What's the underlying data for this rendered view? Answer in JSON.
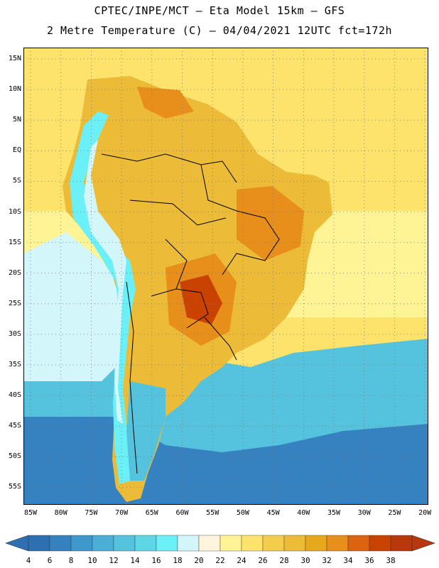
{
  "title_line1": "CPTEC/INPE/MCT –  Eta Model 15km – GFS",
  "title_line2": "2 Metre Temperature (C) – 04/04/2021 12UTC fct=172h",
  "lat_labels": [
    "15N",
    "10N",
    "5N",
    "EQ",
    "5S",
    "10S",
    "15S",
    "20S",
    "25S",
    "30S",
    "35S",
    "40S",
    "45S",
    "50S",
    "55S"
  ],
  "lon_labels": [
    "85W",
    "80W",
    "75W",
    "70W",
    "65W",
    "60W",
    "55W",
    "50W",
    "45W",
    "40W",
    "35W",
    "30W",
    "25W",
    "20W"
  ],
  "colorbar": {
    "labels": [
      "4",
      "6",
      "8",
      "10",
      "12",
      "14",
      "16",
      "18",
      "20",
      "22",
      "24",
      "26",
      "28",
      "30",
      "32",
      "34",
      "36",
      "38"
    ],
    "colors": [
      "#2d6fb0",
      "#3682c0",
      "#3f98cc",
      "#4aaed6",
      "#55c3dd",
      "#5fd6e6",
      "#6cf0f7",
      "#d3f6fb",
      "#fff5dc",
      "#fff495",
      "#fde36c",
      "#f5cd4d",
      "#ecbb38",
      "#e6a81c",
      "#e88f1b",
      "#dc6411",
      "#c94200",
      "#b8370d"
    ]
  },
  "map": {
    "ocean_colors": {
      "tropics": "#fde36c",
      "subtropic": "#fff495",
      "mid": "#55c3dd",
      "south": "#3682c0",
      "coast_cool": "#d3f6fb"
    },
    "land_colors": {
      "interior": "#ecbb38",
      "hot": "#e88f1b",
      "hottest": "#c94200",
      "andes": "#6cf0f7",
      "andes_high": "#d3f6fb",
      "patagonia": "#55c3dd"
    }
  }
}
